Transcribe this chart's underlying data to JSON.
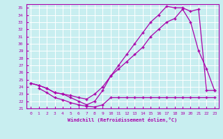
{
  "bg_color": "#c8eef0",
  "grid_color": "#ffffff",
  "line_color": "#aa00aa",
  "xlabel": "Windchill (Refroidissement éolien,°C)",
  "xlim": [
    -0.5,
    23.5
  ],
  "ylim": [
    21,
    35.5
  ],
  "yticks": [
    21,
    22,
    23,
    24,
    25,
    26,
    27,
    28,
    29,
    30,
    31,
    32,
    33,
    34,
    35
  ],
  "xticks": [
    0,
    1,
    2,
    3,
    4,
    5,
    6,
    7,
    8,
    9,
    10,
    11,
    12,
    13,
    14,
    15,
    16,
    17,
    18,
    19,
    20,
    21,
    22,
    23
  ],
  "line1_x": [
    0,
    1,
    2,
    3,
    4,
    5,
    6,
    7,
    8,
    9,
    10,
    11,
    12,
    13,
    14,
    15,
    16,
    17,
    18,
    19,
    20,
    21,
    22,
    23
  ],
  "line1_y": [
    24.5,
    24.2,
    23.8,
    23.2,
    23.0,
    22.8,
    22.5,
    22.3,
    23.0,
    24.0,
    25.5,
    26.5,
    27.5,
    28.5,
    29.5,
    31.0,
    32.0,
    33.0,
    33.5,
    34.8,
    33.0,
    29.0,
    26.5,
    23.5
  ],
  "line2_x": [
    0,
    1,
    2,
    3,
    4,
    5,
    6,
    7,
    8,
    9,
    10,
    11,
    12,
    13,
    14,
    15,
    16,
    17,
    18,
    19,
    20,
    21,
    22,
    23
  ],
  "line2_y": [
    24.5,
    24.2,
    23.8,
    23.2,
    23.0,
    22.5,
    22.0,
    21.5,
    22.0,
    23.5,
    25.5,
    27.0,
    28.5,
    30.0,
    31.5,
    33.0,
    34.0,
    35.2,
    35.0,
    35.0,
    34.5,
    34.8,
    23.5,
    23.5
  ],
  "line3_x": [
    1,
    2,
    3,
    4,
    5,
    6,
    7,
    8,
    9,
    10,
    11,
    12,
    13,
    14,
    15,
    16,
    17,
    18,
    19,
    20,
    21,
    22,
    23
  ],
  "line3_y": [
    23.8,
    23.2,
    22.5,
    22.2,
    21.8,
    21.5,
    21.3,
    21.2,
    21.5,
    22.5,
    22.5,
    22.5,
    22.5,
    22.5,
    22.5,
    22.5,
    22.5,
    22.5,
    22.5,
    22.5,
    22.5,
    22.5,
    22.5
  ]
}
